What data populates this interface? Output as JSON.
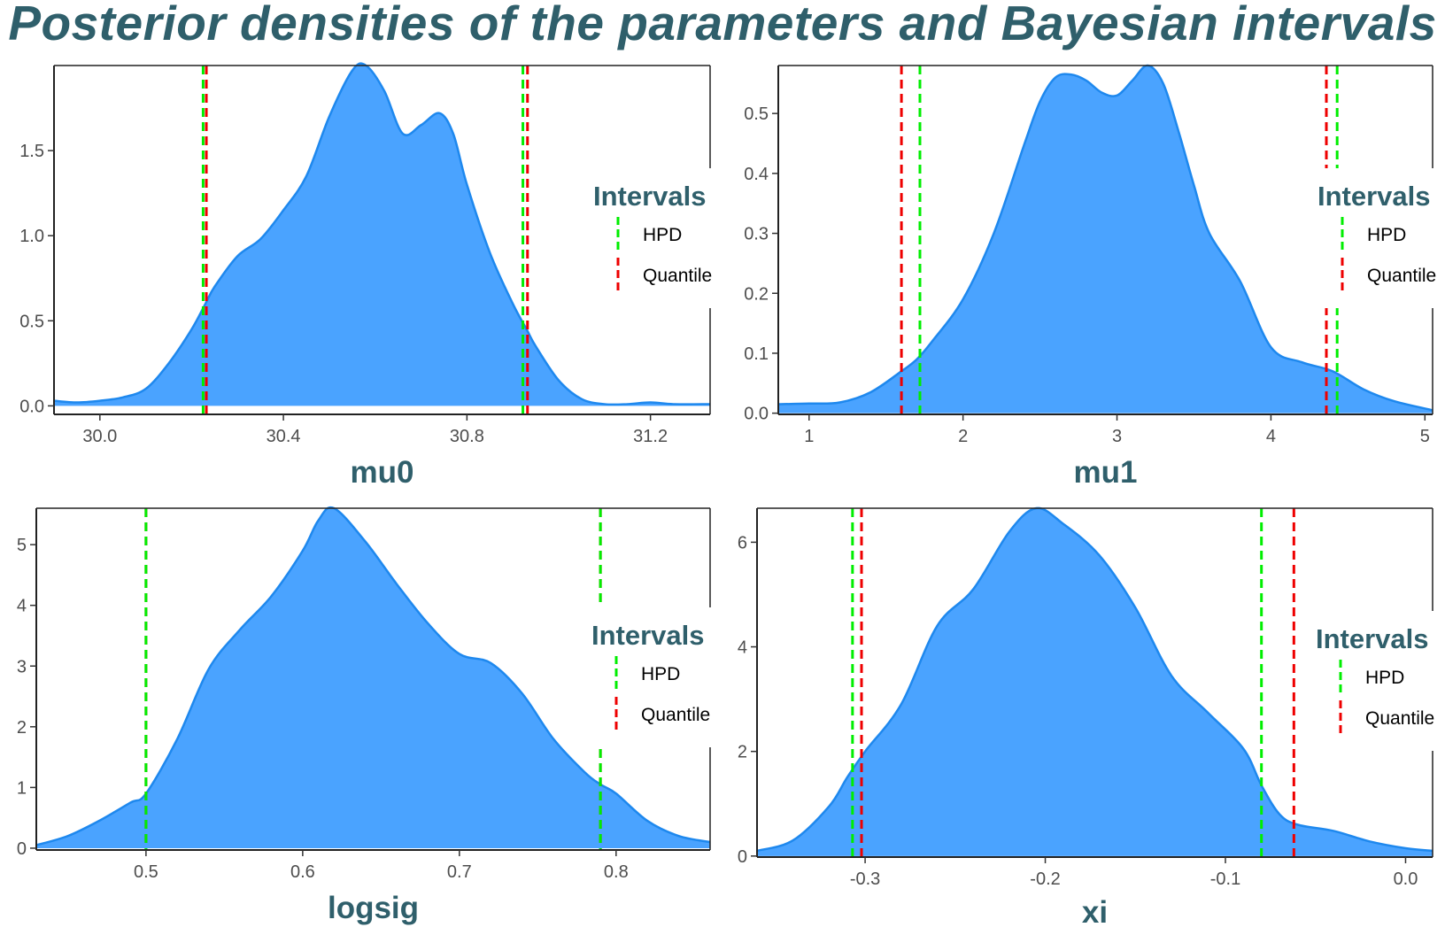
{
  "title": "Posterior densities of the parameters and Bayesian intervals",
  "colors": {
    "title": "#2f5f6b",
    "fill": "#4aa3ff",
    "line": "#1e88ee",
    "hpd": "#00ee00",
    "quantile": "#ee0000"
  },
  "chart_data": [
    {
      "type": "area",
      "xlabel": "mu0",
      "xlim": [
        29.9,
        31.33
      ],
      "ylim": [
        -0.05,
        2.0
      ],
      "xticks": [
        30.0,
        30.4,
        30.8,
        31.2
      ],
      "xtick_labels": [
        "30.0",
        "30.4",
        "30.8",
        "31.2"
      ],
      "yticks": [
        0.0,
        0.5,
        1.0,
        1.5
      ],
      "ytick_labels": [
        "0.0",
        "0.5",
        "1.0",
        "1.5"
      ],
      "density": {
        "x": [
          29.9,
          29.95,
          30.0,
          30.05,
          30.1,
          30.15,
          30.2,
          30.23,
          30.25,
          30.3,
          30.35,
          30.4,
          30.45,
          30.5,
          30.55,
          30.58,
          30.62,
          30.66,
          30.7,
          30.74,
          30.77,
          30.8,
          30.85,
          30.9,
          30.93,
          30.95,
          31.0,
          31.05,
          31.1,
          31.15,
          31.2,
          31.25,
          31.33
        ],
        "y": [
          0.03,
          0.02,
          0.03,
          0.05,
          0.1,
          0.25,
          0.45,
          0.6,
          0.7,
          0.88,
          0.98,
          1.15,
          1.35,
          1.7,
          1.97,
          2.0,
          1.85,
          1.6,
          1.65,
          1.72,
          1.6,
          1.3,
          0.9,
          0.6,
          0.45,
          0.35,
          0.15,
          0.04,
          0.01,
          0.01,
          0.02,
          0.01,
          0.01
        ]
      },
      "intervals": {
        "hpd": [
          30.225,
          30.922
        ],
        "quantile": [
          30.232,
          30.932
        ]
      },
      "legend": {
        "title": "Intervals",
        "items": [
          "HPD",
          "Quantile"
        ],
        "position": "right"
      }
    },
    {
      "type": "area",
      "xlabel": "mu1",
      "xlim": [
        0.8,
        5.05
      ],
      "ylim": [
        -0.002,
        0.58
      ],
      "xticks": [
        1,
        2,
        3,
        4,
        5
      ],
      "xtick_labels": [
        "1",
        "2",
        "3",
        "4",
        "5"
      ],
      "yticks": [
        0.0,
        0.1,
        0.2,
        0.3,
        0.4,
        0.5
      ],
      "ytick_labels": [
        "0.0",
        "0.1",
        "0.2",
        "0.3",
        "0.4",
        "0.5"
      ],
      "density": {
        "x": [
          0.8,
          1.0,
          1.2,
          1.4,
          1.6,
          1.7,
          1.8,
          2.0,
          2.2,
          2.4,
          2.5,
          2.6,
          2.7,
          2.8,
          2.9,
          3.0,
          3.1,
          3.2,
          3.3,
          3.4,
          3.5,
          3.6,
          3.8,
          4.0,
          4.2,
          4.4,
          4.6,
          4.8,
          5.05
        ],
        "y": [
          0.015,
          0.016,
          0.018,
          0.035,
          0.07,
          0.09,
          0.12,
          0.19,
          0.3,
          0.45,
          0.52,
          0.56,
          0.565,
          0.555,
          0.535,
          0.53,
          0.555,
          0.58,
          0.55,
          0.47,
          0.38,
          0.3,
          0.22,
          0.11,
          0.085,
          0.07,
          0.04,
          0.02,
          0.005
        ]
      },
      "intervals": {
        "hpd": [
          1.72,
          4.43
        ],
        "quantile": [
          1.6,
          4.36
        ]
      },
      "legend": {
        "title": "Intervals",
        "items": [
          "HPD",
          "Quantile"
        ],
        "position": "right"
      }
    },
    {
      "type": "area",
      "xlabel": "logsig",
      "xlim": [
        0.43,
        0.86
      ],
      "ylim": [
        -0.03,
        5.6
      ],
      "xticks": [
        0.5,
        0.6,
        0.7,
        0.8
      ],
      "xtick_labels": [
        "0.5",
        "0.6",
        "0.7",
        "0.8"
      ],
      "yticks": [
        0,
        1,
        2,
        3,
        4,
        5
      ],
      "ytick_labels": [
        "0",
        "1",
        "2",
        "3",
        "4",
        "5"
      ],
      "density": {
        "x": [
          0.43,
          0.45,
          0.47,
          0.49,
          0.5,
          0.52,
          0.54,
          0.56,
          0.58,
          0.6,
          0.61,
          0.62,
          0.64,
          0.66,
          0.68,
          0.7,
          0.72,
          0.74,
          0.76,
          0.78,
          0.79,
          0.8,
          0.82,
          0.84,
          0.86
        ],
        "y": [
          0.05,
          0.2,
          0.45,
          0.75,
          0.9,
          1.8,
          2.95,
          3.6,
          4.15,
          4.9,
          5.4,
          5.6,
          5.05,
          4.35,
          3.7,
          3.2,
          3.05,
          2.55,
          1.8,
          1.25,
          1.05,
          0.9,
          0.45,
          0.2,
          0.1
        ]
      },
      "intervals": {
        "hpd": [
          0.5,
          0.79
        ],
        "quantile": [
          0.5,
          0.79
        ]
      },
      "legend": {
        "title": "Intervals",
        "items": [
          "HPD",
          "Quantile"
        ],
        "position": "right"
      }
    },
    {
      "type": "area",
      "xlabel": "xi",
      "xlim": [
        -0.36,
        0.015
      ],
      "ylim": [
        -0.02,
        6.65
      ],
      "xticks": [
        -0.3,
        -0.2,
        -0.1,
        0.0
      ],
      "xtick_labels": [
        "-0.3",
        "-0.2",
        "-0.1",
        "0.0"
      ],
      "yticks": [
        0,
        2,
        4,
        6
      ],
      "ytick_labels": [
        "0",
        "2",
        "4",
        "6"
      ],
      "density": {
        "x": [
          -0.36,
          -0.34,
          -0.32,
          -0.31,
          -0.3,
          -0.28,
          -0.26,
          -0.24,
          -0.22,
          -0.205,
          -0.19,
          -0.17,
          -0.15,
          -0.13,
          -0.11,
          -0.09,
          -0.08,
          -0.07,
          -0.06,
          -0.04,
          -0.02,
          0.0,
          0.015
        ],
        "y": [
          0.1,
          0.3,
          0.95,
          1.5,
          2.0,
          2.9,
          4.4,
          5.1,
          6.2,
          6.65,
          6.35,
          5.75,
          4.75,
          3.45,
          2.75,
          2.05,
          1.35,
          0.8,
          0.6,
          0.48,
          0.28,
          0.15,
          0.1
        ]
      },
      "intervals": {
        "hpd": [
          -0.307,
          -0.08
        ],
        "quantile": [
          -0.302,
          -0.062
        ]
      },
      "legend": {
        "title": "Intervals",
        "items": [
          "HPD",
          "Quantile"
        ],
        "position": "right"
      }
    }
  ]
}
